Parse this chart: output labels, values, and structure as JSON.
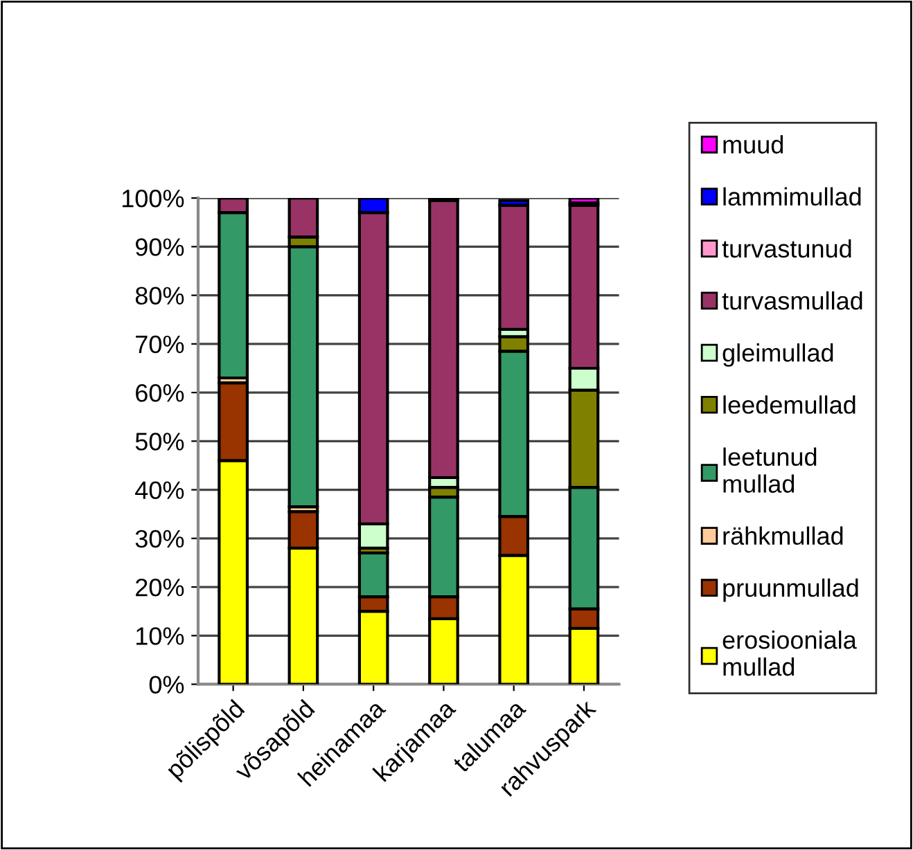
{
  "chart_data": {
    "type": "bar",
    "stacked": true,
    "categories": [
      "põlispõld",
      "võsapõld",
      "heinamaa",
      "karjamaa",
      "talumaa",
      "rahvuspark"
    ],
    "series": [
      {
        "name": "erosiooniala mullad",
        "color": "#ffff00",
        "values": [
          46,
          28,
          15,
          13.5,
          26.5,
          11.5
        ]
      },
      {
        "name": "pruunmullad",
        "color": "#993300",
        "values": [
          16,
          7.5,
          3,
          4.5,
          8,
          4
        ]
      },
      {
        "name": "rähkmullad",
        "color": "#ffcc99",
        "values": [
          1,
          1,
          null,
          null,
          null,
          null
        ]
      },
      {
        "name": "leetunud mullad",
        "color": "#339966",
        "values": [
          34,
          53.5,
          9,
          20.5,
          34,
          25
        ]
      },
      {
        "name": "leedemullad",
        "color": "#808000",
        "values": [
          null,
          2,
          1,
          2,
          3,
          20
        ]
      },
      {
        "name": "gleimullad",
        "color": "#ccffcc",
        "values": [
          null,
          null,
          5,
          2,
          1.5,
          4.5
        ]
      },
      {
        "name": "turvasmullad",
        "color": "#993366",
        "values": [
          3,
          8,
          64,
          57,
          25.5,
          33.5
        ]
      },
      {
        "name": "turvastunud",
        "color": "#ff99cc",
        "values": [
          null,
          null,
          null,
          null,
          null,
          0.5
        ]
      },
      {
        "name": "lammimullad",
        "color": "#0000ff",
        "values": [
          null,
          null,
          3,
          null,
          1,
          null
        ]
      },
      {
        "name": "muud",
        "color": "#ff00ff",
        "values": [
          null,
          null,
          null,
          0.5,
          null,
          1
        ]
      }
    ],
    "ylim": [
      0,
      100
    ],
    "yticks": [
      {
        "value": 0,
        "label": "0%"
      },
      {
        "value": 10,
        "label": "10%"
      },
      {
        "value": 20,
        "label": "20%"
      },
      {
        "value": 30,
        "label": "30%"
      },
      {
        "value": 40,
        "label": "40%"
      },
      {
        "value": 50,
        "label": "50%"
      },
      {
        "value": 60,
        "label": "60%"
      },
      {
        "value": 70,
        "label": "70%"
      },
      {
        "value": 80,
        "label": "80%"
      },
      {
        "value": 90,
        "label": "90%"
      },
      {
        "value": 100,
        "label": "100%"
      }
    ],
    "grid": "y",
    "legend": "right"
  }
}
